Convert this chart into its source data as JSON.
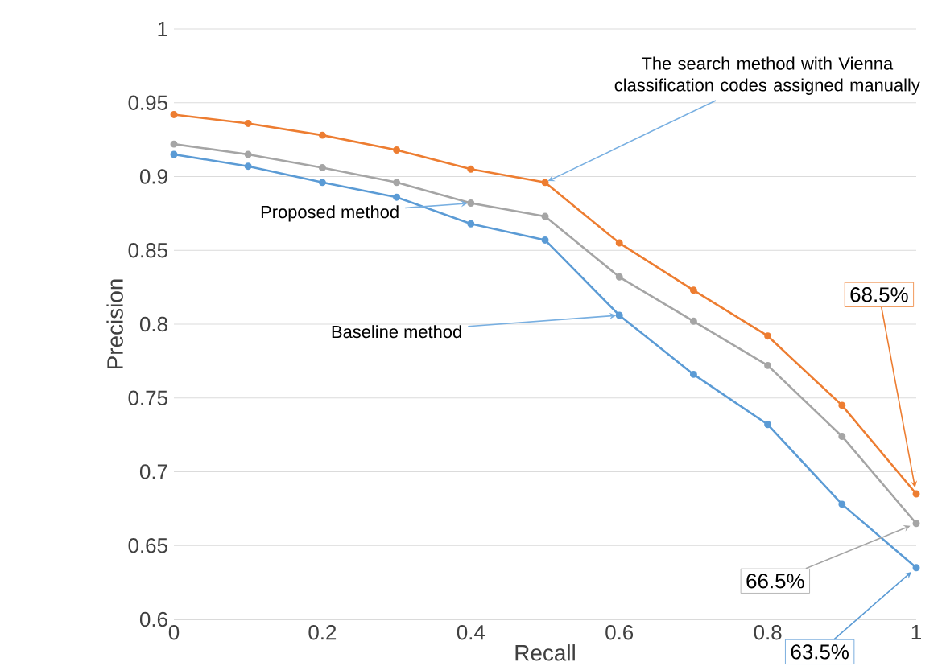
{
  "chart_data": {
    "type": "line",
    "xlabel": "Recall",
    "ylabel": "Precision",
    "x": [
      0,
      0.1,
      0.2,
      0.3,
      0.4,
      0.5,
      0.6,
      0.7,
      0.8,
      0.9,
      1
    ],
    "series": [
      {
        "name": "The search method with Vienna classification codes assigned manually",
        "color": "#ed7d31",
        "values": [
          0.942,
          0.936,
          0.928,
          0.918,
          0.905,
          0.896,
          0.855,
          0.823,
          0.792,
          0.745,
          0.685
        ],
        "value_labels": [
          null,
          null,
          null,
          null,
          null,
          null,
          null,
          null,
          null,
          null,
          "68.5%"
        ]
      },
      {
        "name": "Proposed method",
        "color": "#a5a5a5",
        "values": [
          0.922,
          0.915,
          0.906,
          0.896,
          0.882,
          0.873,
          0.832,
          0.802,
          0.772,
          0.724,
          0.665
        ],
        "value_labels": [
          null,
          null,
          null,
          null,
          null,
          null,
          null,
          null,
          null,
          null,
          "66.5%"
        ]
      },
      {
        "name": "Baseline method",
        "color": "#5b9bd5",
        "values": [
          0.915,
          0.907,
          0.896,
          0.886,
          0.868,
          0.857,
          0.806,
          0.766,
          0.732,
          0.678,
          0.635
        ],
        "value_labels": [
          null,
          null,
          null,
          null,
          null,
          null,
          null,
          null,
          null,
          null,
          "63.5%"
        ]
      }
    ],
    "xlim": [
      0,
      1
    ],
    "ylim": [
      0.6,
      1
    ],
    "xticks": [
      0,
      0.2,
      0.4,
      0.6,
      0.8,
      1
    ],
    "yticks": [
      0.6,
      0.65,
      0.7,
      0.75,
      0.8,
      0.85,
      0.9,
      0.95,
      1
    ],
    "grid": "y",
    "marker": "circle",
    "line_style": "solid"
  }
}
